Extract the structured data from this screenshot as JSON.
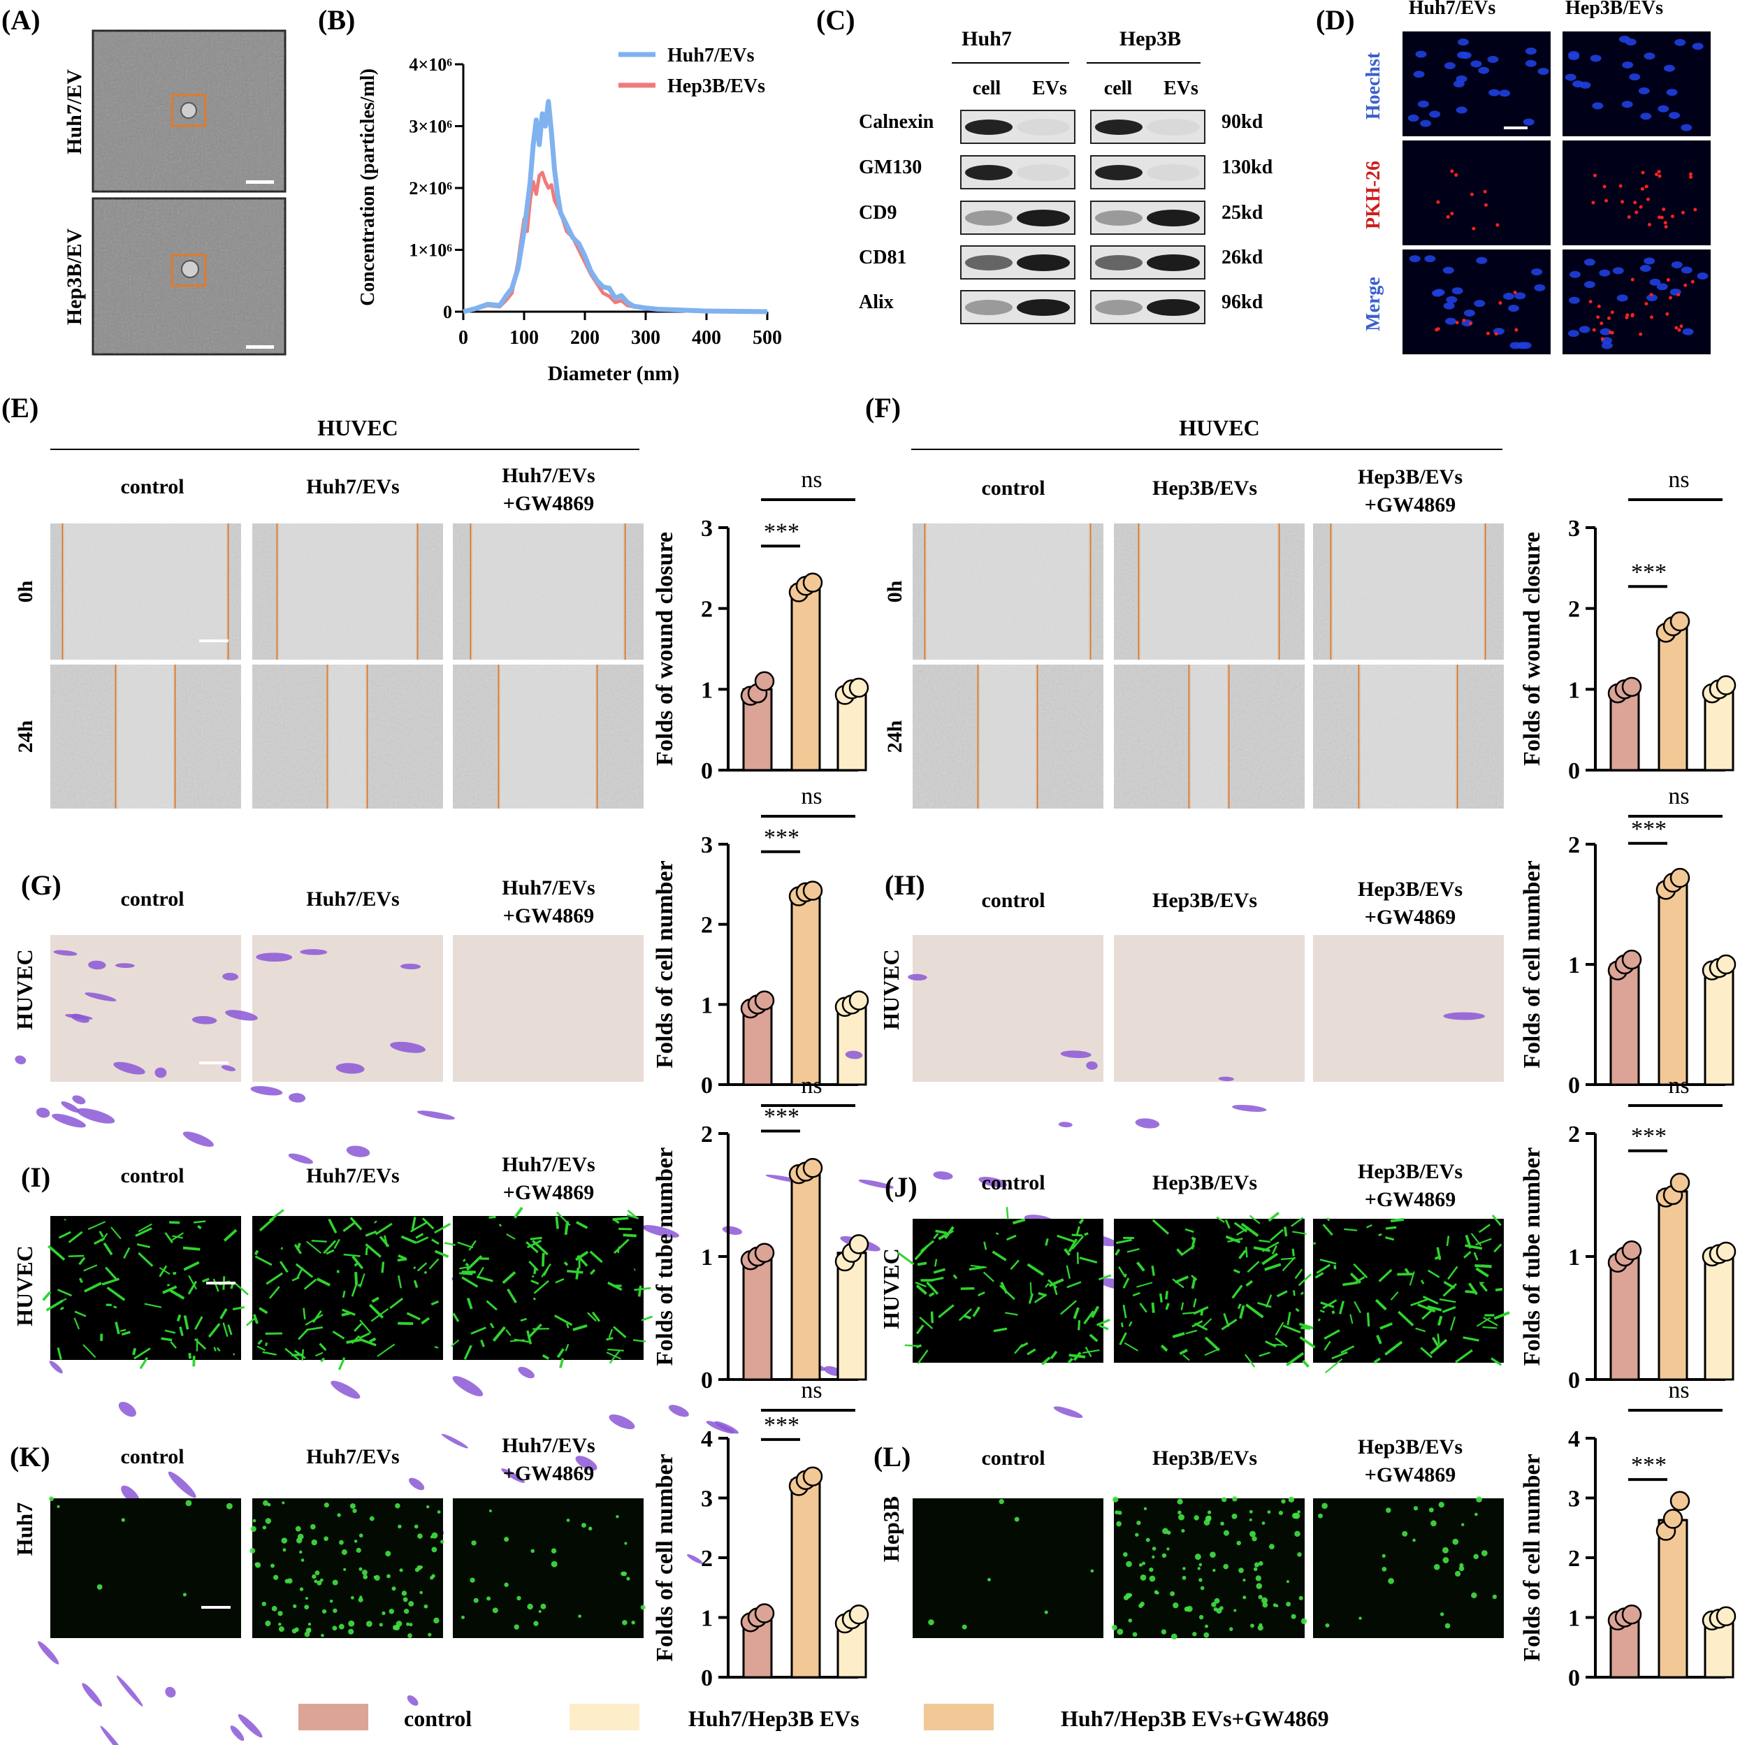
{
  "panels": {
    "A": "(A)",
    "B": "(B)",
    "C": "(C)",
    "D": "(D)",
    "E": "(E)",
    "F": "(F)",
    "G": "(G)",
    "H": "(H)",
    "I": "(I)",
    "J": "(J)",
    "K": "(K)",
    "L": "(L)"
  },
  "tem": {
    "row1": "Huh7/EV",
    "row2": "Hep3B/EV"
  },
  "nta": {
    "ylabel": "Concentration (particles/ml)",
    "xlabel": "Diameter (nm)",
    "yticks": [
      "0",
      "1×10⁶",
      "2×10⁶",
      "3×10⁶",
      "4×10⁶"
    ],
    "xticks": [
      "0",
      "100",
      "200",
      "300",
      "400",
      "500"
    ],
    "legend": [
      "Huh7/EVs",
      "Hep3B/EVs"
    ],
    "colors": {
      "huh7": "#7fb2ef",
      "hep3b": "#f07a7a"
    }
  },
  "western": {
    "groups": [
      "Huh7",
      "Hep3B"
    ],
    "lanes": [
      "cell",
      "EVs",
      "cell",
      "EVs"
    ],
    "proteins": [
      "Calnexin",
      "GM130",
      "CD9",
      "CD81",
      "Alix"
    ],
    "sizes": [
      "90kd",
      "130kd",
      "25kd",
      "26kd",
      "96kd"
    ]
  },
  "uptake": {
    "cols": [
      "Huh7/EVs",
      "Hep3B/EVs"
    ],
    "rows": [
      "Hoechst",
      "PKH-26",
      "Merge"
    ],
    "row_colors": [
      "#3a5fcd",
      "#cc1f1f",
      "#3a5fcd"
    ]
  },
  "left_cond": [
    "control",
    "Huh7/EVs",
    "Huh7/EVs",
    "+GW4869"
  ],
  "right_cond": [
    "control",
    "Hep3B/EVs",
    "Hep3B/EVs",
    "+GW4869"
  ],
  "huvec": "HUVEC",
  "times": [
    "0h",
    "24h"
  ],
  "cell_labels": {
    "K": "Huh7",
    "L": "Hep3B"
  },
  "sig": {
    "stars": "***",
    "ns": "ns"
  },
  "bar_colors": {
    "control": "#dba497",
    "evs": "#f2c896",
    "gw": "#fdeec9"
  },
  "legend": [
    "control",
    "Huh7/Hep3B EVs",
    "Huh7/Hep3B EVs+GW4869"
  ],
  "legend_colors": [
    "#dba497",
    "#fdeec9",
    "#f2c896"
  ],
  "chart_data": [
    {
      "type": "line",
      "panel": "B",
      "title": "",
      "xlabel": "Diameter (nm)",
      "ylabel": "Concentration (particles/ml)",
      "xlim": [
        0,
        500
      ],
      "ylim": [
        0,
        4000000
      ],
      "series": [
        {
          "name": "Huh7/EVs",
          "x": [
            0,
            20,
            40,
            60,
            70,
            80,
            90,
            100,
            105,
            110,
            115,
            120,
            125,
            130,
            135,
            140,
            145,
            150,
            155,
            160,
            170,
            180,
            190,
            200,
            210,
            220,
            230,
            240,
            250,
            260,
            270,
            280,
            300,
            320,
            350,
            400,
            450,
            500
          ],
          "values": [
            0,
            50000,
            120000,
            100000,
            250000,
            380000,
            700000,
            1300000,
            1700000,
            2100000,
            2700000,
            3100000,
            2700000,
            3200000,
            3000000,
            3400000,
            2900000,
            2300000,
            1900000,
            1600000,
            1400000,
            1200000,
            1100000,
            900000,
            650000,
            500000,
            400000,
            380000,
            220000,
            260000,
            150000,
            90000,
            60000,
            40000,
            30000,
            10000,
            5000,
            0
          ]
        },
        {
          "name": "Hep3B/EVs",
          "x": [
            0,
            20,
            40,
            60,
            70,
            80,
            90,
            100,
            105,
            110,
            115,
            120,
            125,
            130,
            135,
            140,
            145,
            150,
            155,
            160,
            170,
            180,
            190,
            200,
            210,
            220,
            230,
            240,
            250,
            260,
            270,
            280,
            300,
            320,
            350,
            400,
            450,
            500
          ],
          "values": [
            0,
            40000,
            100000,
            80000,
            180000,
            300000,
            800000,
            1500000,
            1300000,
            1800000,
            2100000,
            1900000,
            2200000,
            2250000,
            2100000,
            2000000,
            2050000,
            1800000,
            1700000,
            1600000,
            1300000,
            1200000,
            1000000,
            800000,
            600000,
            450000,
            300000,
            250000,
            150000,
            180000,
            100000,
            80000,
            50000,
            30000,
            20000,
            8000,
            4000,
            0
          ]
        }
      ]
    },
    {
      "type": "bar",
      "panel": "E",
      "ylabel": "Folds of wound closure",
      "ylim": [
        0,
        3
      ],
      "categories": [
        "control",
        "Huh7/EVs",
        "Huh7/EVs+GW4869"
      ],
      "values": [
        1.0,
        2.27,
        0.98
      ],
      "points": [
        [
          0.92,
          0.95,
          1.1
        ],
        [
          2.2,
          2.28,
          2.32
        ],
        [
          0.93,
          1.0,
          1.02
        ]
      ]
    },
    {
      "type": "bar",
      "panel": "F",
      "ylabel": "Folds of wound closure",
      "ylim": [
        0,
        3
      ],
      "categories": [
        "control",
        "Hep3B/EVs",
        "Hep3B/EVs+GW4869"
      ],
      "values": [
        1.0,
        1.77,
        1.0
      ],
      "points": [
        [
          0.95,
          1.0,
          1.03
        ],
        [
          1.7,
          1.78,
          1.84
        ],
        [
          0.95,
          1.0,
          1.05
        ]
      ]
    },
    {
      "type": "bar",
      "panel": "G",
      "ylabel": "Folds of cell number",
      "ylim": [
        0,
        3
      ],
      "categories": [
        "control",
        "Huh7/EVs",
        "Huh7/EVs+GW4869"
      ],
      "values": [
        1.0,
        2.4,
        1.0
      ],
      "points": [
        [
          0.95,
          1.0,
          1.05
        ],
        [
          2.35,
          2.4,
          2.42
        ],
        [
          0.97,
          1.0,
          1.05
        ]
      ]
    },
    {
      "type": "bar",
      "panel": "H",
      "ylabel": "Folds of cell number",
      "ylim": [
        0,
        2
      ],
      "categories": [
        "control",
        "Hep3B/EVs",
        "Hep3B/EVs+GW4869"
      ],
      "values": [
        1.0,
        1.67,
        0.97
      ],
      "points": [
        [
          0.95,
          1.0,
          1.04
        ],
        [
          1.62,
          1.68,
          1.72
        ],
        [
          0.95,
          0.97,
          1.0
        ]
      ]
    },
    {
      "type": "bar",
      "panel": "I",
      "ylabel": "Folds of tube number",
      "ylim": [
        0,
        2
      ],
      "categories": [
        "control",
        "Huh7/EVs",
        "Huh7/EVs+GW4869"
      ],
      "values": [
        1.0,
        1.69,
        1.03
      ],
      "points": [
        [
          0.97,
          1.0,
          1.03
        ],
        [
          1.67,
          1.69,
          1.72
        ],
        [
          0.96,
          1.03,
          1.1
        ]
      ]
    },
    {
      "type": "bar",
      "panel": "J",
      "ylabel": "Folds of tube number",
      "ylim": [
        0,
        2
      ],
      "categories": [
        "control",
        "Hep3B/EVs",
        "Hep3B/EVs+GW4869"
      ],
      "values": [
        1.0,
        1.53,
        1.02
      ],
      "points": [
        [
          0.95,
          1.0,
          1.05
        ],
        [
          1.48,
          1.5,
          1.6
        ],
        [
          1.0,
          1.02,
          1.04
        ]
      ]
    },
    {
      "type": "bar",
      "panel": "K",
      "ylabel": "Folds of cell number",
      "ylim": [
        0,
        4
      ],
      "categories": [
        "control",
        "Huh7/EVs",
        "Huh7/EVs+GW4869"
      ],
      "values": [
        1.0,
        3.3,
        0.97
      ],
      "points": [
        [
          0.92,
          1.0,
          1.07
        ],
        [
          3.2,
          3.3,
          3.36
        ],
        [
          0.9,
          0.97,
          1.05
        ]
      ]
    },
    {
      "type": "bar",
      "panel": "L",
      "ylabel": "Folds of cell number",
      "ylim": [
        0,
        4
      ],
      "categories": [
        "control",
        "Hep3B/EVs",
        "Hep3B/EVs+GW4869"
      ],
      "values": [
        1.0,
        2.63,
        0.98
      ],
      "points": [
        [
          0.95,
          1.0,
          1.05
        ],
        [
          2.45,
          2.65,
          2.95
        ],
        [
          0.95,
          0.98,
          1.02
        ]
      ]
    }
  ]
}
